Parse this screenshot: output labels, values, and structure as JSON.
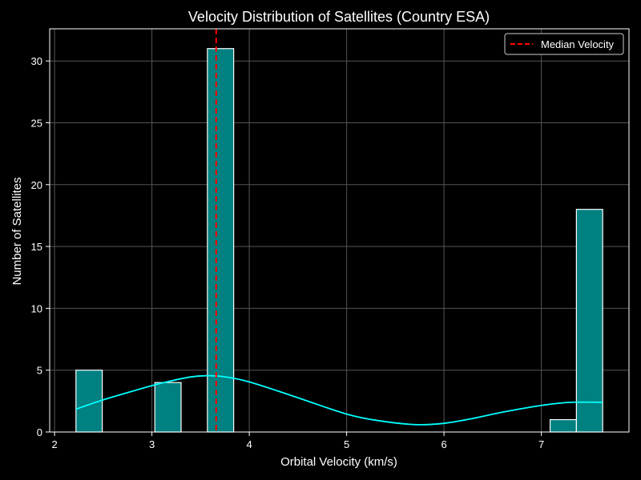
{
  "chart_data": {
    "type": "bar",
    "title": "Velocity Distribution of Satellites (Country ESA)",
    "xlabel": "Orbital Velocity (km/s)",
    "ylabel": "Number of Satellites",
    "xlim": [
      1.95,
      7.9
    ],
    "ylim": [
      0,
      32.6
    ],
    "xticks": [
      2,
      3,
      4,
      5,
      6,
      7
    ],
    "yticks": [
      0,
      5,
      10,
      15,
      20,
      25,
      30
    ],
    "grid": true,
    "legend_position": "top-right",
    "bins": [
      {
        "x0": 2.22,
        "x1": 2.49,
        "count": 5
      },
      {
        "x0": 3.03,
        "x1": 3.3,
        "count": 4
      },
      {
        "x0": 3.57,
        "x1": 3.84,
        "count": 31
      },
      {
        "x0": 7.09,
        "x1": 7.36,
        "count": 1
      },
      {
        "x0": 7.36,
        "x1": 7.63,
        "count": 18
      }
    ],
    "kde": {
      "name": "",
      "x": [
        2.22,
        2.5,
        2.8,
        3.1,
        3.4,
        3.6,
        3.8,
        4.0,
        4.3,
        4.6,
        5.0,
        5.3,
        5.7,
        6.0,
        6.3,
        6.6,
        7.0,
        7.3,
        7.63
      ],
      "y": [
        1.85,
        2.6,
        3.3,
        3.95,
        4.45,
        4.55,
        4.4,
        4.05,
        3.3,
        2.5,
        1.45,
        0.95,
        0.6,
        0.7,
        1.1,
        1.6,
        2.15,
        2.4,
        2.4
      ]
    },
    "median": {
      "value": 3.66,
      "label": "Median Velocity"
    },
    "colors": {
      "background": "#000000",
      "bar_fill": "#008080",
      "bar_edge": "#ffffff",
      "kde_line": "#00ffff",
      "median_line": "#ff0000",
      "grid": "#555555",
      "text": "#ffffff"
    }
  }
}
